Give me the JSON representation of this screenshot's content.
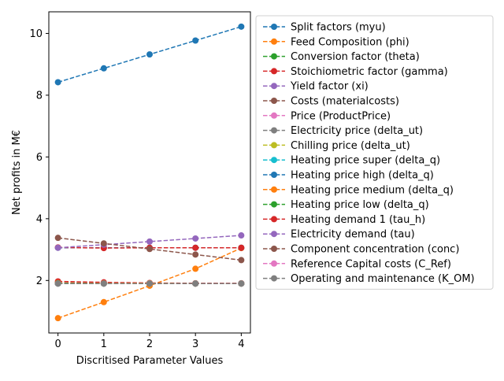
{
  "chart_data": {
    "type": "line",
    "title": "",
    "xlabel": "Discritised Parameter Values",
    "ylabel": "Net profits in M€",
    "x": [
      0,
      1,
      2,
      3,
      4
    ],
    "xlim": [
      -0.2,
      4.2
    ],
    "ylim": [
      0.3,
      10.7
    ],
    "xticks": [
      0,
      1,
      2,
      3,
      4
    ],
    "yticks": [
      2,
      4,
      6,
      8,
      10
    ],
    "grid": false,
    "legend_position": "outside-right",
    "series": [
      {
        "name": "Split factors (myu)",
        "color": "#1f77b4",
        "values": [
          8.42,
          8.87,
          9.32,
          9.77,
          10.22
        ]
      },
      {
        "name": "Feed Composition (phi)",
        "color": "#ff7f0e",
        "values": [
          0.78,
          1.3,
          1.83,
          2.38,
          3.05
        ]
      },
      {
        "name": "Conversion factor (theta)",
        "color": "#2ca02c",
        "values": [
          1.9,
          1.9,
          1.9,
          1.9,
          1.9
        ]
      },
      {
        "name": "Stoichiometric factor (gamma)",
        "color": "#d62728",
        "values": [
          1.97,
          1.94,
          1.92,
          1.91,
          1.91
        ]
      },
      {
        "name": "Yield factor (xi)",
        "color": "#9467bd",
        "values": [
          1.91,
          1.91,
          1.91,
          1.9,
          1.9
        ]
      },
      {
        "name": "Costs (materialcosts)",
        "color": "#8c564b",
        "values": [
          1.92,
          1.91,
          1.91,
          1.9,
          1.9
        ]
      },
      {
        "name": "Price (ProductPrice)",
        "color": "#e377c2",
        "values": [
          1.91,
          1.9,
          1.9,
          1.9,
          1.9
        ]
      },
      {
        "name": "Electricity price (delta_ut)",
        "color": "#7f7f7f",
        "values": [
          1.9,
          1.9,
          1.9,
          1.9,
          1.9
        ]
      },
      {
        "name": "Chilling price (delta_ut)",
        "color": "#bcbd22",
        "values": [
          1.9,
          1.9,
          1.9,
          1.9,
          1.9
        ]
      },
      {
        "name": "Heating price super (delta_q)",
        "color": "#17becf",
        "values": [
          1.9,
          1.9,
          1.9,
          1.9,
          1.9
        ]
      },
      {
        "name": "Heating price high (delta_q)",
        "color": "#1f77b4",
        "values": [
          3.06,
          3.06,
          3.06,
          3.06,
          3.06
        ]
      },
      {
        "name": "Heating price medium (delta_q)",
        "color": "#ff7f0e",
        "values": [
          1.92,
          1.91,
          1.91,
          1.9,
          1.9
        ]
      },
      {
        "name": "Heating price low (delta_q)",
        "color": "#2ca02c",
        "values": [
          1.91,
          1.9,
          1.9,
          1.9,
          1.9
        ]
      },
      {
        "name": "Heating demand 1 (tau_h)",
        "color": "#d62728",
        "values": [
          3.07,
          3.05,
          3.06,
          3.06,
          3.06
        ]
      },
      {
        "name": "Electricity demand (tau)",
        "color": "#9467bd",
        "values": [
          3.06,
          3.16,
          3.26,
          3.36,
          3.46
        ]
      },
      {
        "name": "Component concentration (conc)",
        "color": "#8c564b",
        "values": [
          3.38,
          3.2,
          3.02,
          2.84,
          2.66
        ]
      },
      {
        "name": "Reference Capital costs (C_Ref)",
        "color": "#e377c2",
        "values": [
          1.9,
          1.9,
          1.9,
          1.9,
          1.9
        ]
      },
      {
        "name": "Operating and maintenance (K_OM)",
        "color": "#7f7f7f",
        "values": [
          1.9,
          1.9,
          1.9,
          1.9,
          1.9
        ]
      }
    ]
  }
}
